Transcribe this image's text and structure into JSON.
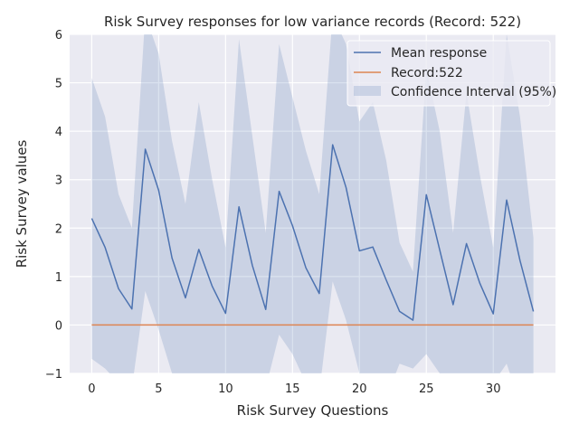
{
  "chart_data": {
    "type": "line",
    "title": "Risk Survey responses for low variance records (Record: 522)",
    "xlabel": "Risk Survey Questions",
    "ylabel": "Risk Survey values",
    "xlim": [
      -1.65,
      34.65
    ],
    "ylim": [
      -1,
      6
    ],
    "xticks": [
      0,
      5,
      10,
      15,
      20,
      25,
      30
    ],
    "yticks": [
      -1,
      0,
      1,
      2,
      3,
      4,
      5,
      6
    ],
    "grid": true,
    "legend_position": "top-right",
    "x": [
      0,
      1,
      2,
      3,
      4,
      5,
      6,
      7,
      8,
      9,
      10,
      11,
      12,
      13,
      14,
      15,
      16,
      17,
      18,
      19,
      20,
      21,
      22,
      23,
      24,
      25,
      26,
      27,
      28,
      29,
      30,
      31,
      32,
      33
    ],
    "series": [
      {
        "name": "Mean response",
        "color": "#4c72b0",
        "values": [
          2.2,
          1.6,
          0.75,
          0.33,
          3.63,
          2.78,
          1.38,
          0.56,
          1.56,
          0.8,
          0.24,
          2.44,
          1.23,
          0.32,
          2.76,
          2.05,
          1.18,
          0.65,
          3.72,
          2.84,
          1.53,
          1.61,
          0.93,
          0.28,
          0.1,
          2.69,
          1.55,
          0.42,
          1.68,
          0.86,
          0.23,
          2.58,
          1.33,
          0.28
        ]
      },
      {
        "name": "Record:522",
        "color": "#dd8452",
        "values": [
          0,
          0,
          0,
          0,
          0,
          0,
          0,
          0,
          0,
          0,
          0,
          0,
          0,
          0,
          0,
          0,
          0,
          0,
          0,
          0,
          0,
          0,
          0,
          0,
          0,
          0,
          0,
          0,
          0,
          0,
          0,
          0,
          0,
          0
        ]
      }
    ],
    "confidence_interval": {
      "name": "Confidence Interval (95%)",
      "color": "#4c72b0",
      "opacity": 0.2,
      "upper": [
        5.1,
        4.3,
        2.7,
        2.0,
        6.4,
        5.6,
        3.8,
        2.5,
        4.6,
        3.0,
        1.6,
        5.9,
        3.9,
        1.9,
        5.8,
        4.7,
        3.6,
        2.7,
        6.4,
        5.8,
        4.2,
        4.6,
        3.4,
        1.7,
        1.1,
        5.3,
        4.0,
        1.9,
        4.8,
        3.1,
        1.6,
        6.0,
        4.3,
        1.8
      ],
      "lower": [
        -0.7,
        -0.9,
        -1.2,
        -1.3,
        0.7,
        -0.1,
        -1.0,
        -1.4,
        -1.4,
        -1.4,
        -1.1,
        -1.0,
        -1.4,
        -1.3,
        -0.2,
        -0.6,
        -1.2,
        -1.4,
        0.9,
        0.1,
        -1.0,
        -1.3,
        -1.5,
        -0.8,
        -0.9,
        -0.6,
        -1.0,
        -1.1,
        -1.5,
        -1.3,
        -1.2,
        -0.8,
        -1.6,
        -1.2
      ]
    }
  }
}
